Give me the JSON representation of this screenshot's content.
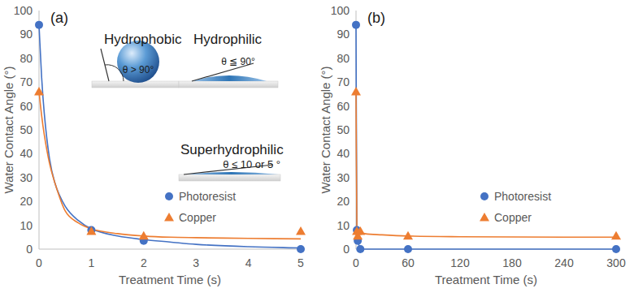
{
  "chart_data": [
    {
      "type": "scatter",
      "x_label": "Treatment Time (s)",
      "y_label": "Water Contact Angle (°)",
      "annotations": [
        "(a)",
        "Hydrophobic",
        "Hydrophilic",
        "θ > 90°",
        "θ ≦ 90°",
        "Superhydrophilic",
        "θ ≤ 10 or 5 °"
      ],
      "xlim": [
        0,
        5
      ],
      "xticks": [
        0,
        1,
        2,
        3,
        4,
        5
      ],
      "ylim": [
        0,
        100
      ],
      "yticks": [
        0,
        10,
        20,
        30,
        40,
        50,
        60,
        70,
        80,
        90,
        100
      ],
      "grid": false,
      "legend": "lower right",
      "series": [
        {
          "name": "Photoresist",
          "type": "scatter",
          "marker": "circle",
          "color": "#4472c4",
          "x": [
            0,
            1,
            2,
            5
          ],
          "values": [
            94,
            8,
            3.5,
            0
          ]
        },
        {
          "name": "Copper",
          "type": "scatter",
          "marker": "triangle",
          "color": "#ed7d31",
          "x": [
            0,
            1,
            2,
            5
          ],
          "values": [
            66,
            7.5,
            5.5,
            7.5
          ]
        },
        {
          "type": "line",
          "line_style": "solid",
          "color": "#4472c4",
          "x": [
            0,
            0.05,
            0.1,
            0.2,
            0.3,
            0.5,
            0.75,
            1,
            1.5,
            2,
            2.5,
            3,
            4,
            5
          ],
          "values": [
            94,
            72,
            57,
            38,
            28,
            18,
            12,
            8.5,
            5.5,
            4,
            3,
            2,
            1,
            0.5
          ]
        },
        {
          "type": "line",
          "line_style": "solid",
          "color": "#ed7d31",
          "x": [
            0,
            0.05,
            0.1,
            0.2,
            0.3,
            0.5,
            0.75,
            1,
            1.5,
            2,
            2.5,
            3,
            4,
            5
          ],
          "values": [
            66,
            56,
            48,
            36,
            28,
            16,
            11,
            8.5,
            6.5,
            5.5,
            5,
            4.8,
            4.5,
            4.3
          ]
        }
      ]
    },
    {
      "type": "scatter",
      "x_label": "Treatment Time (s)",
      "y_label": "Water Contact Angle (°)",
      "annotations": [
        "(b)"
      ],
      "xlim": [
        0,
        300
      ],
      "xticks": [
        0,
        60,
        120,
        180,
        240,
        300
      ],
      "ylim": [
        0,
        100
      ],
      "yticks": [
        0,
        10,
        20,
        30,
        40,
        50,
        60,
        70,
        80,
        90,
        100
      ],
      "grid": false,
      "legend": "lower right",
      "series": [
        {
          "name": "Photoresist",
          "type": "scatter",
          "marker": "circle",
          "color": "#4472c4",
          "x": [
            0,
            1,
            2,
            5,
            60,
            300
          ],
          "values": [
            94,
            8,
            3.5,
            0,
            0,
            0
          ]
        },
        {
          "name": "Copper",
          "type": "scatter",
          "marker": "triangle",
          "color": "#ed7d31",
          "x": [
            0,
            1,
            2,
            5,
            60,
            300
          ],
          "values": [
            66,
            7.5,
            5.5,
            7.5,
            5.5,
            5.5
          ]
        },
        {
          "type": "line",
          "line_style": "solid",
          "color": "#4472c4",
          "x": [
            0,
            1,
            2,
            5,
            60,
            300
          ],
          "values": [
            94,
            8,
            3.5,
            0,
            0,
            0
          ]
        },
        {
          "type": "line",
          "line_style": "solid",
          "color": "#ed7d31",
          "x": [
            0,
            1,
            2,
            5,
            10,
            30,
            60,
            120,
            300
          ],
          "values": [
            66,
            9,
            7.5,
            7,
            6.5,
            6,
            5.5,
            5.2,
            5
          ]
        }
      ]
    }
  ]
}
